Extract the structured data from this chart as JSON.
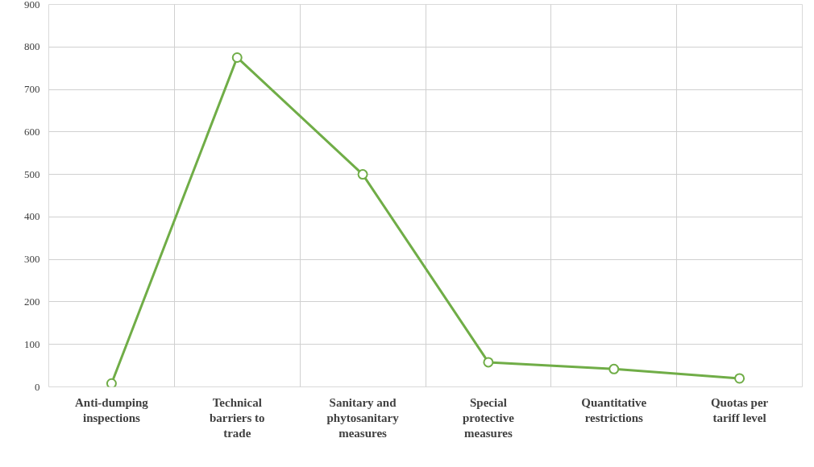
{
  "chart_data": {
    "type": "line",
    "categories": [
      "Anti-dumping inspections",
      "Technical barriers to trade",
      "Sanitary and phytosanitary measures",
      "Special protective measures",
      "Quantitative restrictions",
      "Quotas per tariff level"
    ],
    "series": [
      {
        "color": "#70ad47",
        "values": [
          8,
          775,
          500,
          58,
          42,
          20
        ]
      }
    ],
    "ylim": [
      0,
      900
    ],
    "yticks": [
      0,
      100,
      200,
      300,
      400,
      500,
      600,
      700,
      800,
      900
    ],
    "grid": true,
    "marker": "circle",
    "line_style": "solid"
  }
}
